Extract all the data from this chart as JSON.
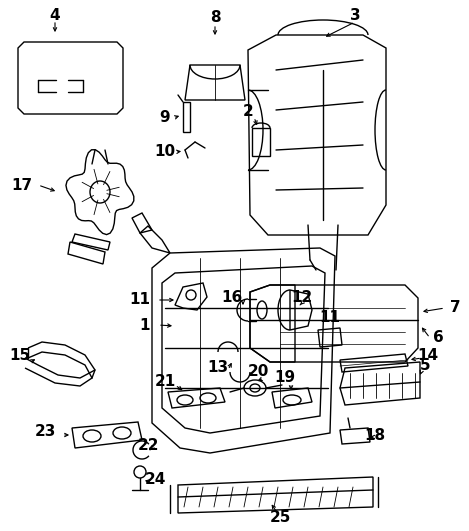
{
  "bg_color": "#ffffff",
  "line_color": "#000000",
  "fig_width": 4.69,
  "fig_height": 5.31,
  "dpi": 100,
  "label_fontsize": 11,
  "label_fontweight": "bold"
}
